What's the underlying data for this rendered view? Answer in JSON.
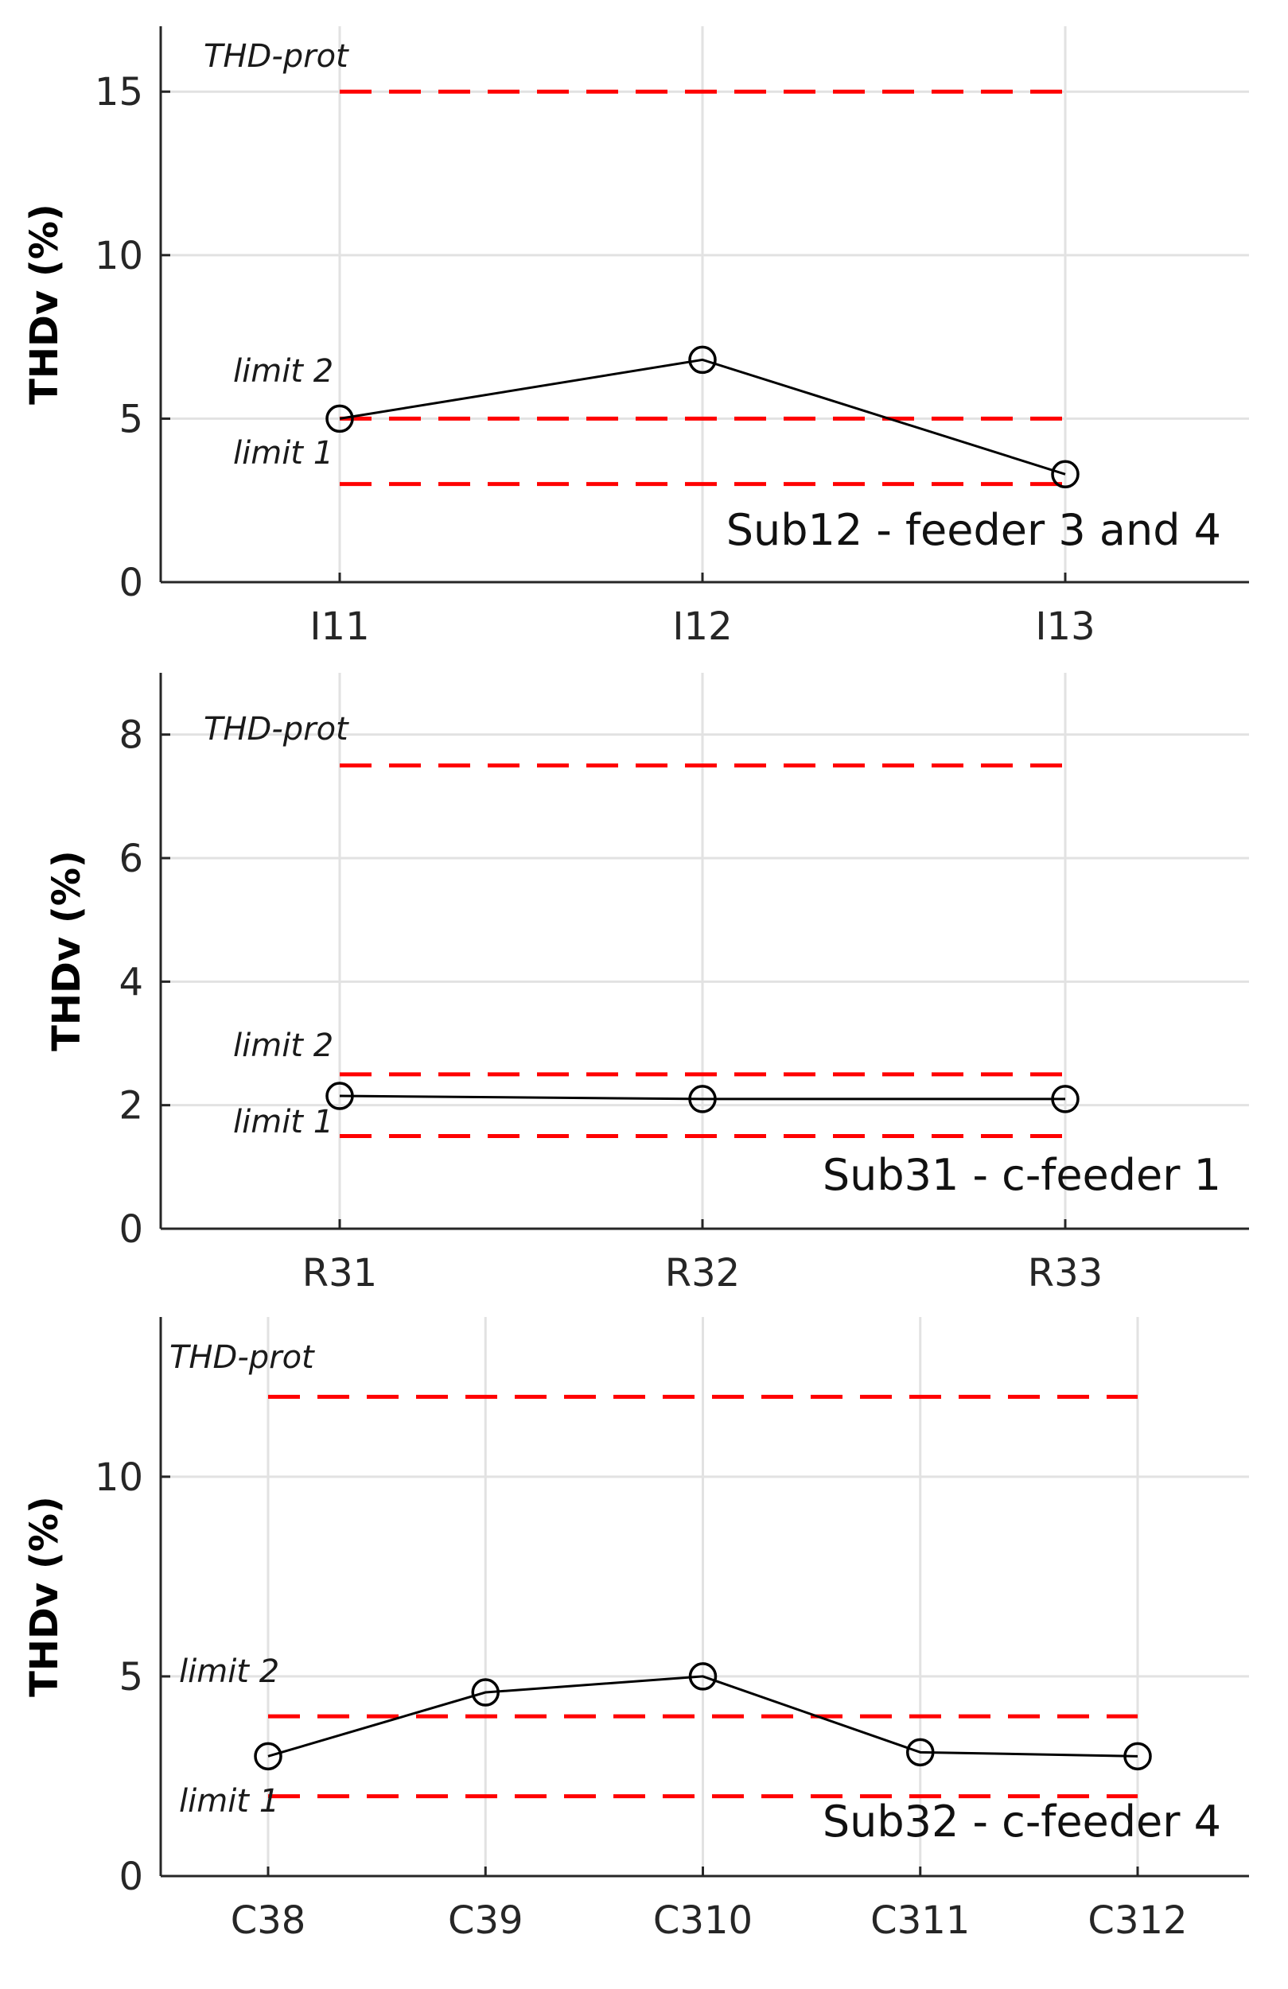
{
  "chart_data": [
    {
      "type": "line",
      "ylabel": "THDv (%)",
      "annotation": "Sub12 - feeder 3 and 4",
      "categories": [
        "I11",
        "I12",
        "I13"
      ],
      "values": [
        5.0,
        6.8,
        3.3
      ],
      "ylim": [
        0,
        17
      ],
      "yticks": [
        0,
        5,
        10,
        15
      ],
      "grid": true,
      "reference_lines": [
        {
          "label": "THD-prot",
          "value": 15
        },
        {
          "label": "limit 2",
          "value": 5
        },
        {
          "label": "limit 1",
          "value": 3
        }
      ],
      "line_color": "#000000",
      "reference_color": "#ff0000"
    },
    {
      "type": "line",
      "ylabel": "THDv (%)",
      "annotation": "Sub31 - c-feeder 1",
      "categories": [
        "R31",
        "R32",
        "R33"
      ],
      "values": [
        2.15,
        2.1,
        2.1
      ],
      "ylim": [
        0,
        9
      ],
      "yticks": [
        0,
        2,
        4,
        6,
        8
      ],
      "grid": true,
      "reference_lines": [
        {
          "label": "THD-prot",
          "value": 7.5
        },
        {
          "label": "limit 2",
          "value": 2.5
        },
        {
          "label": "limit 1",
          "value": 1.5
        }
      ],
      "line_color": "#000000",
      "reference_color": "#ff0000"
    },
    {
      "type": "line",
      "ylabel": "THDv (%)",
      "annotation": "Sub32 - c-feeder 4",
      "categories": [
        "C38",
        "C39",
        "C310",
        "C311",
        "C312"
      ],
      "values": [
        3.0,
        4.6,
        5.0,
        3.1,
        3.0
      ],
      "ylim": [
        0,
        14
      ],
      "yticks": [
        0,
        5,
        10
      ],
      "grid": true,
      "reference_lines": [
        {
          "label": "THD-prot",
          "value": 12
        },
        {
          "label": "limit 2",
          "value": 4
        },
        {
          "label": "limit 1",
          "value": 2
        }
      ],
      "line_color": "#000000",
      "reference_color": "#ff0000"
    }
  ]
}
